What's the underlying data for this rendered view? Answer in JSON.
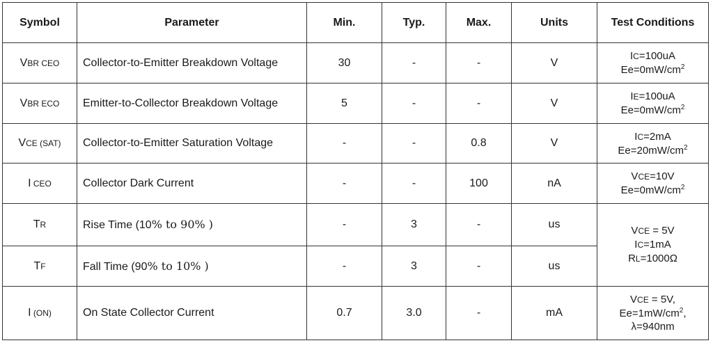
{
  "headers": {
    "symbol": "Symbol",
    "parameter": "Parameter",
    "min": "Min.",
    "typ": "Typ.",
    "max": "Max.",
    "units": "Units",
    "test": "Test Conditions"
  },
  "rows": [
    {
      "sym_main": "V",
      "sym_sub": "BR CEO",
      "param": "Collector-to-Emitter Breakdown Voltage",
      "min": "30",
      "typ": "-",
      "max": "-",
      "unit": "V",
      "c1_main": "I",
      "c1_sub": "C",
      "c1_rest": "=100uA",
      "c2": "Ee=0mW/cm",
      "c2_sup": "2"
    },
    {
      "sym_main": "V",
      "sym_sub": "BR ECO",
      "param": "Emitter-to-Collector Breakdown Voltage",
      "min": "5",
      "typ": "-",
      "max": "-",
      "unit": "V",
      "c1_main": "I",
      "c1_sub": "E",
      "c1_rest": "=100uA",
      "c2": "Ee=0mW/cm",
      "c2_sup": "2"
    },
    {
      "sym_main": "V",
      "sym_sub": "CE (SAT)",
      "param": "Collector-to-Emitter Saturation Voltage",
      "min": "-",
      "typ": "-",
      "max": "0.8",
      "unit": "V",
      "c1_main": "I",
      "c1_sub": "C",
      "c1_rest": "=2mA",
      "c2": "Ee=20mW/cm",
      "c2_sup": "2"
    },
    {
      "sym_main": "I",
      "sym_sub": " CEO",
      "param": "Collector Dark Current",
      "min": "-",
      "typ": "-",
      "max": "100",
      "unit": "nA",
      "c1_main": "V",
      "c1_sub": "CE",
      "c1_rest": "=10V",
      "c2": "Ee=0mW/cm",
      "c2_sup": "2"
    },
    {
      "sym_main": "T",
      "sym_sub": "R",
      "param_a": "Rise Time (10",
      "param_b": "% to 90",
      "param_c": "% )",
      "pct": "%",
      "min": "-",
      "typ": "3",
      "max": "-",
      "unit": "us",
      "shared_cond": {
        "l1_main": "V",
        "l1_sub": "CE",
        "l1_rest": " = 5V",
        "l2_main": "I",
        "l2_sub": "C",
        "l2_rest": "=1mA",
        "l3_main": "R",
        "l3_sub": "L",
        "l3_rest": "=1000Ω"
      }
    },
    {
      "sym_main": "T",
      "sym_sub": "F",
      "param_a": "Fall Time (90",
      "param_b": "% to 10",
      "param_c": "% )",
      "min": "-",
      "typ": "3",
      "max": "-",
      "unit": "us"
    },
    {
      "sym_main": "I",
      "sym_sub": " (ON)",
      "param": "On State Collector Current",
      "min": "0.7",
      "typ": "3.0",
      "max": "-",
      "unit": "mA",
      "l1_main": "V",
      "l1_sub": "CE",
      "l1_rest": " = 5V,",
      "l2": "Ee=1mW/cm",
      "l2_sup": "2",
      "l2_end": ",",
      "l3": "λ=940nm"
    }
  ]
}
